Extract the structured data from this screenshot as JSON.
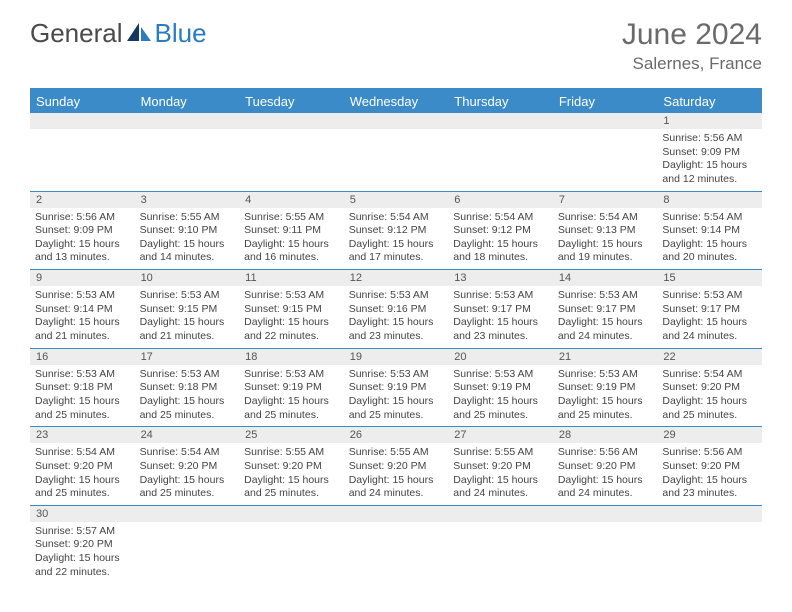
{
  "logo": {
    "general": "General",
    "blue": "Blue"
  },
  "title": {
    "month": "June 2024",
    "location": "Salernes, France"
  },
  "colors": {
    "header_bar": "#3b8bc9",
    "daynum_bg": "#ededed",
    "text": "#444444",
    "title_text": "#6a6a6a"
  },
  "day_names": [
    "Sunday",
    "Monday",
    "Tuesday",
    "Wednesday",
    "Thursday",
    "Friday",
    "Saturday"
  ],
  "weeks": [
    {
      "nums": [
        "",
        "",
        "",
        "",
        "",
        "",
        "1"
      ],
      "cells": [
        null,
        null,
        null,
        null,
        null,
        null,
        {
          "sunrise": "Sunrise: 5:56 AM",
          "sunset": "Sunset: 9:09 PM",
          "day1": "Daylight: 15 hours",
          "day2": "and 12 minutes."
        }
      ]
    },
    {
      "nums": [
        "2",
        "3",
        "4",
        "5",
        "6",
        "7",
        "8"
      ],
      "cells": [
        {
          "sunrise": "Sunrise: 5:56 AM",
          "sunset": "Sunset: 9:09 PM",
          "day1": "Daylight: 15 hours",
          "day2": "and 13 minutes."
        },
        {
          "sunrise": "Sunrise: 5:55 AM",
          "sunset": "Sunset: 9:10 PM",
          "day1": "Daylight: 15 hours",
          "day2": "and 14 minutes."
        },
        {
          "sunrise": "Sunrise: 5:55 AM",
          "sunset": "Sunset: 9:11 PM",
          "day1": "Daylight: 15 hours",
          "day2": "and 16 minutes."
        },
        {
          "sunrise": "Sunrise: 5:54 AM",
          "sunset": "Sunset: 9:12 PM",
          "day1": "Daylight: 15 hours",
          "day2": "and 17 minutes."
        },
        {
          "sunrise": "Sunrise: 5:54 AM",
          "sunset": "Sunset: 9:12 PM",
          "day1": "Daylight: 15 hours",
          "day2": "and 18 minutes."
        },
        {
          "sunrise": "Sunrise: 5:54 AM",
          "sunset": "Sunset: 9:13 PM",
          "day1": "Daylight: 15 hours",
          "day2": "and 19 minutes."
        },
        {
          "sunrise": "Sunrise: 5:54 AM",
          "sunset": "Sunset: 9:14 PM",
          "day1": "Daylight: 15 hours",
          "day2": "and 20 minutes."
        }
      ]
    },
    {
      "nums": [
        "9",
        "10",
        "11",
        "12",
        "13",
        "14",
        "15"
      ],
      "cells": [
        {
          "sunrise": "Sunrise: 5:53 AM",
          "sunset": "Sunset: 9:14 PM",
          "day1": "Daylight: 15 hours",
          "day2": "and 21 minutes."
        },
        {
          "sunrise": "Sunrise: 5:53 AM",
          "sunset": "Sunset: 9:15 PM",
          "day1": "Daylight: 15 hours",
          "day2": "and 21 minutes."
        },
        {
          "sunrise": "Sunrise: 5:53 AM",
          "sunset": "Sunset: 9:15 PM",
          "day1": "Daylight: 15 hours",
          "day2": "and 22 minutes."
        },
        {
          "sunrise": "Sunrise: 5:53 AM",
          "sunset": "Sunset: 9:16 PM",
          "day1": "Daylight: 15 hours",
          "day2": "and 23 minutes."
        },
        {
          "sunrise": "Sunrise: 5:53 AM",
          "sunset": "Sunset: 9:17 PM",
          "day1": "Daylight: 15 hours",
          "day2": "and 23 minutes."
        },
        {
          "sunrise": "Sunrise: 5:53 AM",
          "sunset": "Sunset: 9:17 PM",
          "day1": "Daylight: 15 hours",
          "day2": "and 24 minutes."
        },
        {
          "sunrise": "Sunrise: 5:53 AM",
          "sunset": "Sunset: 9:17 PM",
          "day1": "Daylight: 15 hours",
          "day2": "and 24 minutes."
        }
      ]
    },
    {
      "nums": [
        "16",
        "17",
        "18",
        "19",
        "20",
        "21",
        "22"
      ],
      "cells": [
        {
          "sunrise": "Sunrise: 5:53 AM",
          "sunset": "Sunset: 9:18 PM",
          "day1": "Daylight: 15 hours",
          "day2": "and 25 minutes."
        },
        {
          "sunrise": "Sunrise: 5:53 AM",
          "sunset": "Sunset: 9:18 PM",
          "day1": "Daylight: 15 hours",
          "day2": "and 25 minutes."
        },
        {
          "sunrise": "Sunrise: 5:53 AM",
          "sunset": "Sunset: 9:19 PM",
          "day1": "Daylight: 15 hours",
          "day2": "and 25 minutes."
        },
        {
          "sunrise": "Sunrise: 5:53 AM",
          "sunset": "Sunset: 9:19 PM",
          "day1": "Daylight: 15 hours",
          "day2": "and 25 minutes."
        },
        {
          "sunrise": "Sunrise: 5:53 AM",
          "sunset": "Sunset: 9:19 PM",
          "day1": "Daylight: 15 hours",
          "day2": "and 25 minutes."
        },
        {
          "sunrise": "Sunrise: 5:53 AM",
          "sunset": "Sunset: 9:19 PM",
          "day1": "Daylight: 15 hours",
          "day2": "and 25 minutes."
        },
        {
          "sunrise": "Sunrise: 5:54 AM",
          "sunset": "Sunset: 9:20 PM",
          "day1": "Daylight: 15 hours",
          "day2": "and 25 minutes."
        }
      ]
    },
    {
      "nums": [
        "23",
        "24",
        "25",
        "26",
        "27",
        "28",
        "29"
      ],
      "cells": [
        {
          "sunrise": "Sunrise: 5:54 AM",
          "sunset": "Sunset: 9:20 PM",
          "day1": "Daylight: 15 hours",
          "day2": "and 25 minutes."
        },
        {
          "sunrise": "Sunrise: 5:54 AM",
          "sunset": "Sunset: 9:20 PM",
          "day1": "Daylight: 15 hours",
          "day2": "and 25 minutes."
        },
        {
          "sunrise": "Sunrise: 5:55 AM",
          "sunset": "Sunset: 9:20 PM",
          "day1": "Daylight: 15 hours",
          "day2": "and 25 minutes."
        },
        {
          "sunrise": "Sunrise: 5:55 AM",
          "sunset": "Sunset: 9:20 PM",
          "day1": "Daylight: 15 hours",
          "day2": "and 24 minutes."
        },
        {
          "sunrise": "Sunrise: 5:55 AM",
          "sunset": "Sunset: 9:20 PM",
          "day1": "Daylight: 15 hours",
          "day2": "and 24 minutes."
        },
        {
          "sunrise": "Sunrise: 5:56 AM",
          "sunset": "Sunset: 9:20 PM",
          "day1": "Daylight: 15 hours",
          "day2": "and 24 minutes."
        },
        {
          "sunrise": "Sunrise: 5:56 AM",
          "sunset": "Sunset: 9:20 PM",
          "day1": "Daylight: 15 hours",
          "day2": "and 23 minutes."
        }
      ]
    },
    {
      "nums": [
        "30",
        "",
        "",
        "",
        "",
        "",
        ""
      ],
      "cells": [
        {
          "sunrise": "Sunrise: 5:57 AM",
          "sunset": "Sunset: 9:20 PM",
          "day1": "Daylight: 15 hours",
          "day2": "and 22 minutes."
        },
        null,
        null,
        null,
        null,
        null,
        null
      ]
    }
  ]
}
